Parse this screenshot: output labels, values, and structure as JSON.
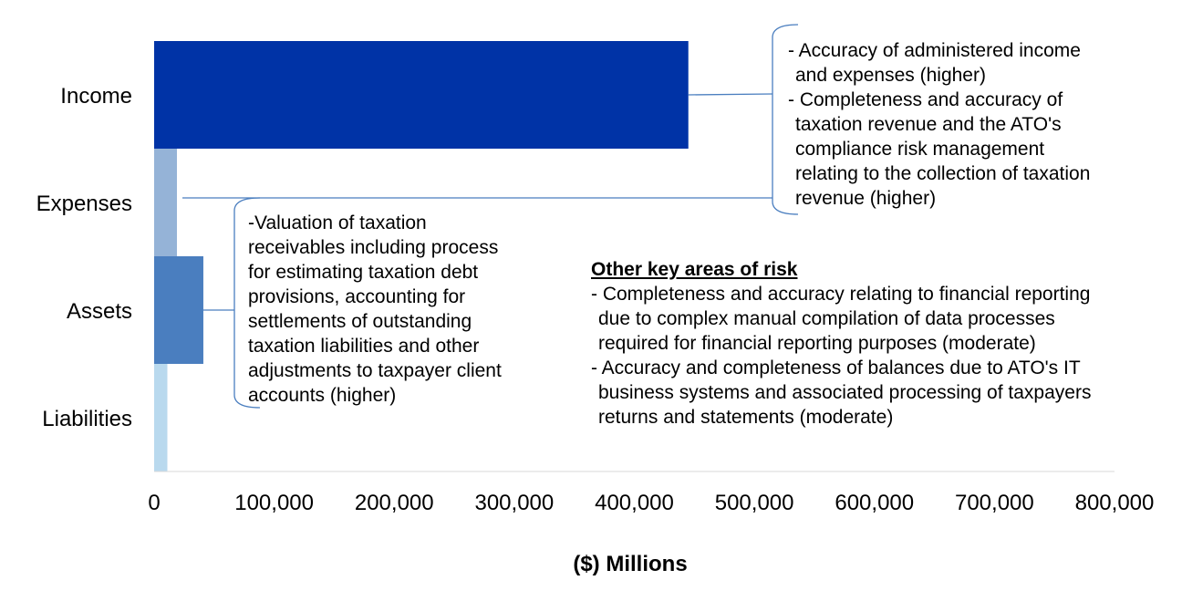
{
  "chart_data": {
    "type": "bar",
    "orientation": "horizontal",
    "categories": [
      "Income",
      "Expenses",
      "Assets",
      "Liabilities"
    ],
    "series": [
      {
        "name": "($) Millions",
        "values": [
          445000,
          19000,
          41000,
          11000
        ],
        "colors": [
          "#0033A6",
          "#95B3D7",
          "#4A7EBF",
          "#B9D9EE"
        ]
      }
    ],
    "xlabel": "($) Millions",
    "ylabel": "",
    "xlim": [
      0,
      800000
    ],
    "xticks": [
      0,
      100000,
      200000,
      300000,
      400000,
      500000,
      600000,
      700000,
      800000
    ],
    "xtick_labels": [
      "0",
      "100,000",
      "200,000",
      "300,000",
      "400,000",
      "500,000",
      "600,000",
      "700,000",
      "800,000"
    ],
    "grid": false,
    "axis_color": "#D9D9D9",
    "bracket_color": "#4A7EBF"
  },
  "annotations": {
    "income_expenses": {
      "lines": [
        "- Accuracy of administered income",
        "and expenses (higher)",
        "- Completeness and accuracy of",
        "taxation revenue and the ATO's",
        "compliance risk management",
        "relating to the collection of taxation",
        "revenue (higher)"
      ]
    },
    "assets": {
      "lines": [
        "-Valuation of taxation",
        "receivables including process",
        "for estimating taxation debt",
        "provisions, accounting for",
        "settlements of outstanding",
        "taxation liabilities and other",
        "adjustments to taxpayer client",
        "accounts (higher)"
      ]
    },
    "other": {
      "heading": "Other key areas of risk",
      "lines": [
        "- Completeness and accuracy relating to financial reporting",
        "due to complex manual compilation of data processes",
        "required for financial reporting purposes (moderate)",
        "- Accuracy and completeness of balances due to ATO's IT",
        "business systems and associated processing of taxpayers",
        "returns and statements (moderate)"
      ]
    }
  }
}
